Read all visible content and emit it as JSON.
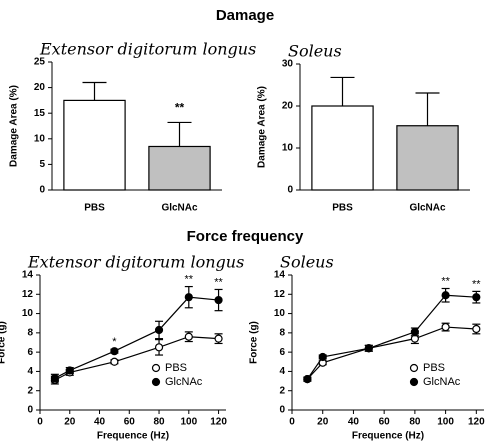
{
  "headings": [
    "Damage",
    "Force frequency"
  ],
  "chart_data": [
    {
      "type": "bar",
      "title": "Extensor digitorum longus",
      "ylabel": "Damage Area (%)",
      "categories": [
        "PBS",
        "GlcNAc"
      ],
      "values": [
        17.5,
        8.5
      ],
      "errors": [
        3.5,
        4.7
      ],
      "colors": [
        "#ffffff",
        "#c0c0c0"
      ],
      "ylim": [
        0,
        25
      ],
      "yticks": [
        0,
        5,
        10,
        15,
        20,
        25
      ],
      "annotations": [
        {
          "x": "GlcNAc",
          "text": "**"
        }
      ]
    },
    {
      "type": "bar",
      "title": "Soleus",
      "ylabel": "Damage Area (%)",
      "categories": [
        "PBS",
        "GlcNAc"
      ],
      "values": [
        20,
        15.3
      ],
      "errors": [
        6.8,
        7.8
      ],
      "colors": [
        "#ffffff",
        "#c0c0c0"
      ],
      "ylim": [
        0,
        30
      ],
      "yticks": [
        0,
        10,
        20,
        30
      ]
    },
    {
      "type": "line",
      "title": "Extensor digitorum longus",
      "xlabel": "Frequence (Hz)",
      "ylabel": "Force (g)",
      "x": [
        10,
        20,
        50,
        80,
        100,
        120
      ],
      "series": [
        {
          "name": "PBS",
          "color": "#ffffff",
          "values": [
            3.1,
            3.9,
            5.0,
            6.5,
            7.6,
            7.4
          ],
          "errors": [
            0.4,
            0.3,
            0.2,
            0.8,
            0.5,
            0.5
          ]
        },
        {
          "name": "GlcNAc",
          "color": "#000000",
          "values": [
            3.3,
            4.1,
            6.1,
            8.3,
            11.7,
            11.4
          ],
          "errors": [
            0.4,
            0.3,
            0.2,
            0.9,
            1.1,
            1.1
          ]
        }
      ],
      "xlim": [
        0,
        125
      ],
      "xticks": [
        0,
        20,
        40,
        60,
        80,
        100,
        120
      ],
      "ylim": [
        0,
        14
      ],
      "yticks": [
        0,
        2,
        4,
        6,
        8,
        10,
        12,
        14
      ],
      "legend": "lower right",
      "annotations": [
        {
          "x": 50,
          "text": "*"
        },
        {
          "x": 100,
          "text": "**"
        },
        {
          "x": 120,
          "text": "**"
        }
      ]
    },
    {
      "type": "line",
      "title": "Soleus",
      "xlabel": "Frequence (Hz)",
      "ylabel": "Force (g)",
      "x": [
        10,
        20,
        50,
        80,
        100,
        120
      ],
      "series": [
        {
          "name": "PBS",
          "color": "#ffffff",
          "values": [
            3.2,
            4.9,
            6.4,
            7.4,
            8.6,
            8.4
          ],
          "errors": [
            0.2,
            0.2,
            0.3,
            0.5,
            0.4,
            0.5
          ]
        },
        {
          "name": "GlcNAc",
          "color": "#000000",
          "values": [
            3.2,
            5.5,
            6.4,
            8.1,
            11.9,
            11.7
          ],
          "errors": [
            0.2,
            0.2,
            0.3,
            0.4,
            0.7,
            0.6
          ]
        }
      ],
      "xlim": [
        0,
        125
      ],
      "xticks": [
        0,
        20,
        40,
        60,
        80,
        100,
        120
      ],
      "ylim": [
        0,
        14
      ],
      "yticks": [
        0,
        2,
        4,
        6,
        8,
        10,
        12,
        14
      ],
      "legend": "lower right",
      "annotations": [
        {
          "x": 100,
          "text": "**"
        },
        {
          "x": 120,
          "text": "**"
        }
      ]
    }
  ]
}
